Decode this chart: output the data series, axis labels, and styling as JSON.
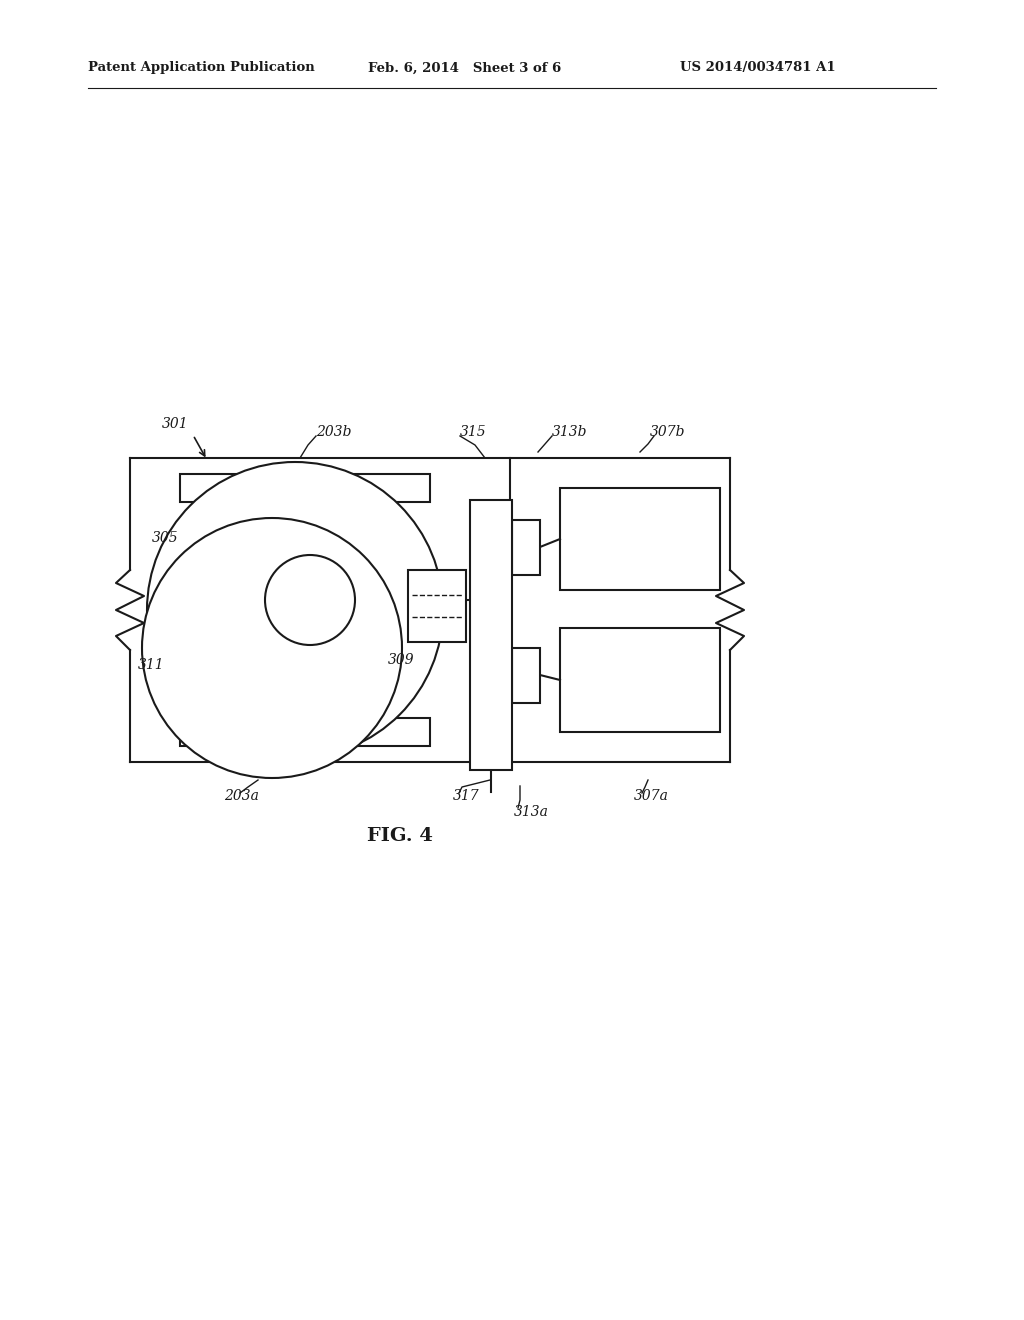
{
  "bg_color": "#ffffff",
  "line_color": "#1a1a1a",
  "header_left": "Patent Application Publication",
  "header_mid": "Feb. 6, 2014   Sheet 3 of 6",
  "header_right": "US 2014/0034781 A1",
  "fig_label": "FIG. 4"
}
